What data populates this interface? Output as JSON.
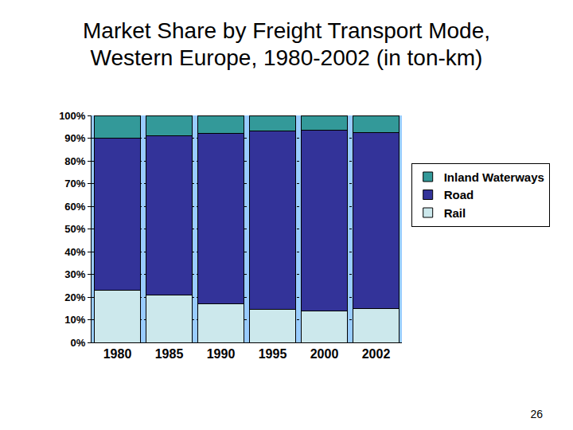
{
  "chart_data": {
    "type": "bar",
    "title": "Market Share by Freight Transport Mode, Western Europe, 1980-2002 (in ton-km)",
    "categories": [
      "1980",
      "1985",
      "1990",
      "1995",
      "2000",
      "2002"
    ],
    "series": [
      {
        "name": "Rail",
        "color": "#cce8ec",
        "values": [
          23,
          21,
          17,
          14.5,
          14,
          15
        ]
      },
      {
        "name": "Road",
        "color": "#333399",
        "values": [
          67,
          70,
          75,
          78.5,
          79.5,
          77.5
        ]
      },
      {
        "name": "Inland Waterways",
        "color": "#339999",
        "values": [
          10,
          9,
          8,
          7,
          6.5,
          7.5
        ]
      }
    ],
    "stacked": true,
    "ylim": [
      0,
      100
    ],
    "yticks": [
      {
        "value": 0,
        "label": "0%"
      },
      {
        "value": 10,
        "label": "10%"
      },
      {
        "value": 20,
        "label": "20%"
      },
      {
        "value": 30,
        "label": "30%"
      },
      {
        "value": 40,
        "label": "40%"
      },
      {
        "value": 50,
        "label": "50%"
      },
      {
        "value": 60,
        "label": "60%"
      },
      {
        "value": 70,
        "label": "70%"
      },
      {
        "value": 80,
        "label": "80%"
      },
      {
        "value": 90,
        "label": "90%"
      },
      {
        "value": 100,
        "label": "100%"
      }
    ],
    "grid": true,
    "legend": "right",
    "annotations": [
      {
        "text": "26"
      }
    ]
  }
}
